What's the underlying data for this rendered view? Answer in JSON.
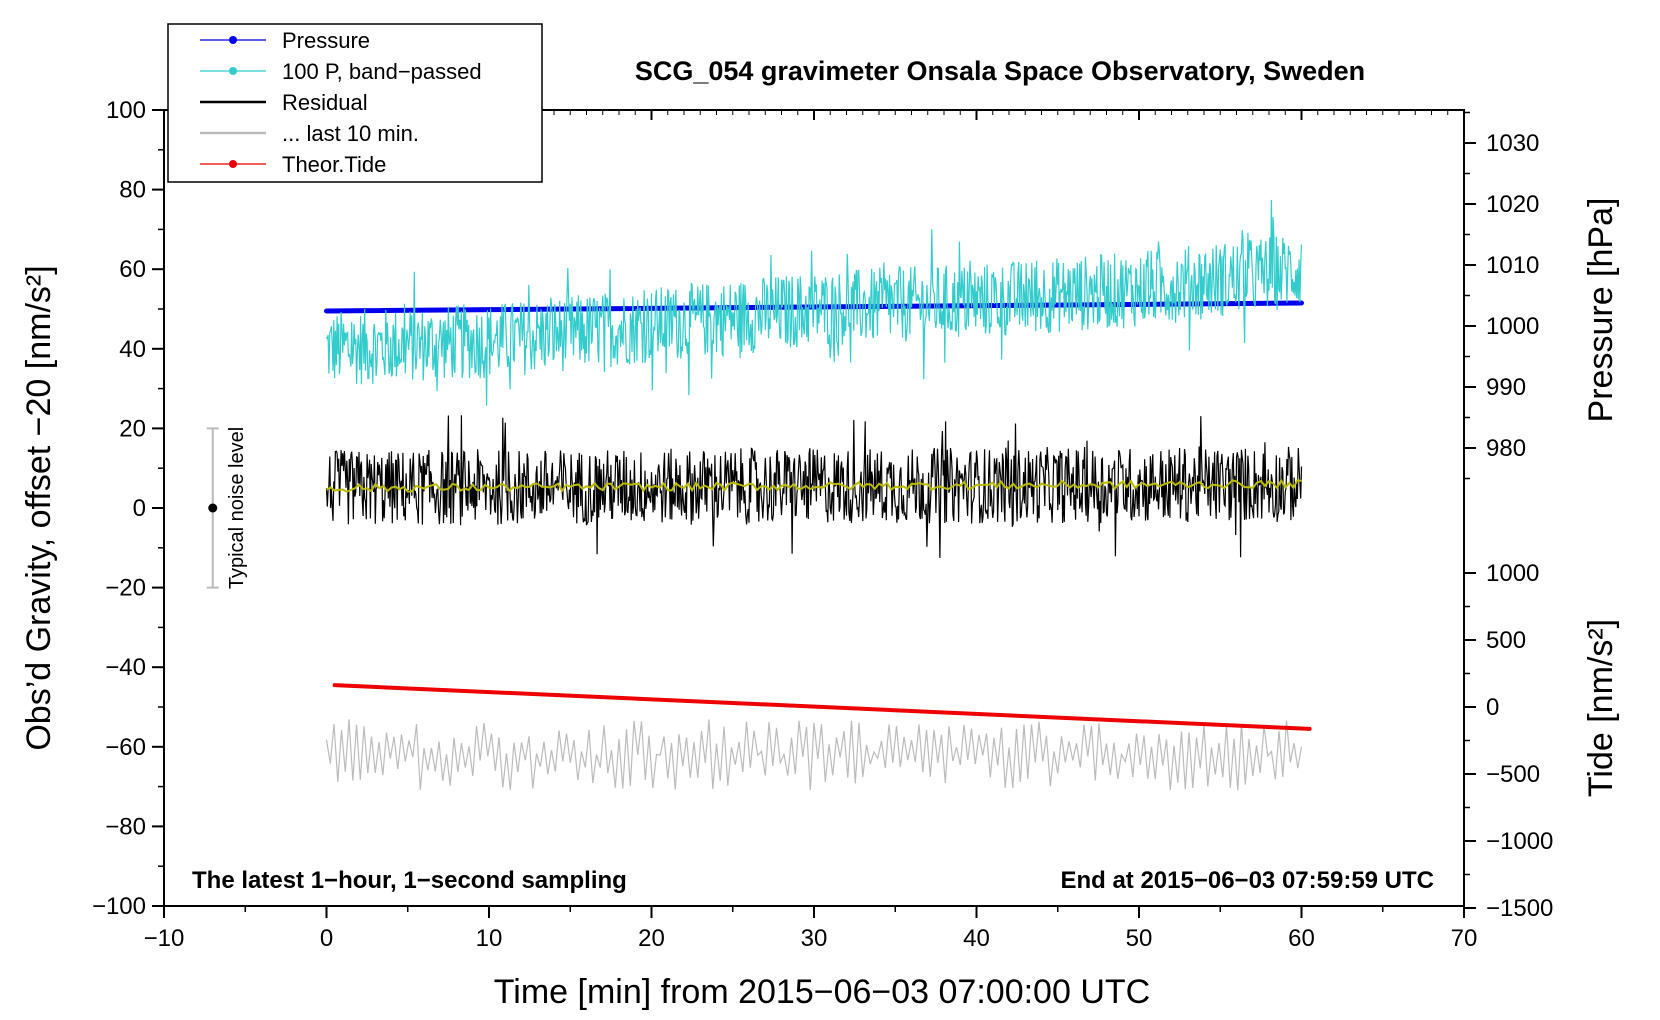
{
  "chart_data": {
    "type": "line",
    "title": "SCG_054 gravimeter Onsala Space Observatory, Sweden",
    "xlabel": "Time [min] from 2015−06−03 07:00:00 UTC",
    "ylabel_left": "Obs’d Gravity, offset −20 [nm/s²]",
    "ylabel_right_top": "Pressure [hPa]",
    "ylabel_right_bottom": "Tide [nm/s²]",
    "xlim": [
      -10,
      70
    ],
    "ylim": [
      -100,
      100
    ],
    "x_ticks": [
      -10,
      0,
      10,
      20,
      30,
      40,
      50,
      60,
      70
    ],
    "x_tick_labels": [
      "−10",
      "0",
      "10",
      "20",
      "30",
      "40",
      "50",
      "60",
      "70"
    ],
    "y_ticks": [
      -100,
      -80,
      -60,
      -40,
      -20,
      0,
      20,
      40,
      60,
      80,
      100
    ],
    "y_tick_labels": [
      "−100",
      "−80",
      "−60",
      "−40",
      "−20",
      "0",
      "20",
      "40",
      "60",
      "80",
      "100"
    ],
    "pressure_axis": {
      "ticks": [
        980,
        990,
        1000,
        1010,
        1020,
        1030
      ],
      "tick_labels": [
        "980",
        "990",
        "1000",
        "1010",
        "1020",
        "1030"
      ]
    },
    "tide_axis": {
      "ticks": [
        1000,
        500,
        0,
        -500,
        -1000,
        -1500
      ],
      "tick_labels": [
        "1000",
        "500",
        "0",
        "−500",
        "−1000",
        "−1500"
      ]
    },
    "legend": {
      "position": "top-left",
      "entries": [
        {
          "label": "Pressure",
          "color": "#0000ee",
          "marker": "dot"
        },
        {
          "label": "100 P, band−passed",
          "color": "#33cccc",
          "marker": "dot"
        },
        {
          "label": "Residual",
          "color": "#000000",
          "marker": "line"
        },
        {
          "label": "... last 10 min.",
          "color": "#bbbbbb",
          "marker": "line"
        },
        {
          "label": "Theor.Tide",
          "color": "#ee0000",
          "marker": "dot"
        }
      ]
    },
    "series": [
      {
        "name": "Pressure",
        "color": "#0000ee",
        "x": [
          0,
          60
        ],
        "y": [
          49.5,
          51.5
        ],
        "unit": "plot units"
      },
      {
        "name": "100 P, band−passed",
        "color": "#33cccc",
        "x": [
          0,
          10,
          20,
          30,
          40,
          50,
          60
        ],
        "y": [
          40,
          42,
          46,
          50,
          52,
          55,
          60
        ],
        "amplitude": 12
      },
      {
        "name": "Residual",
        "color": "#000000",
        "x": [
          0,
          60
        ],
        "y": [
          5,
          6
        ],
        "amplitude": 12
      },
      {
        "name": "smoothed residual",
        "color": "#bbbb00",
        "x": [
          0,
          60
        ],
        "y": [
          5,
          6
        ],
        "amplitude": 1
      },
      {
        "name": "... last 10 min.",
        "color": "#bbbbbb",
        "x": [
          0,
          60
        ],
        "y": [
          -62,
          -62
        ],
        "amplitude": 9
      },
      {
        "name": "Theor.Tide",
        "color": "#ee0000",
        "x": [
          0.5,
          60.5
        ],
        "y": [
          -44.5,
          -55.5
        ]
      }
    ],
    "noise_bar": {
      "x": -7,
      "center": 0,
      "low": -20,
      "high": 20,
      "label": "Typical noise level"
    },
    "annotations": {
      "bottom_left": "The latest 1−hour, 1−second sampling",
      "bottom_right": "End at 2015−06−03 07:59:59 UTC"
    }
  }
}
